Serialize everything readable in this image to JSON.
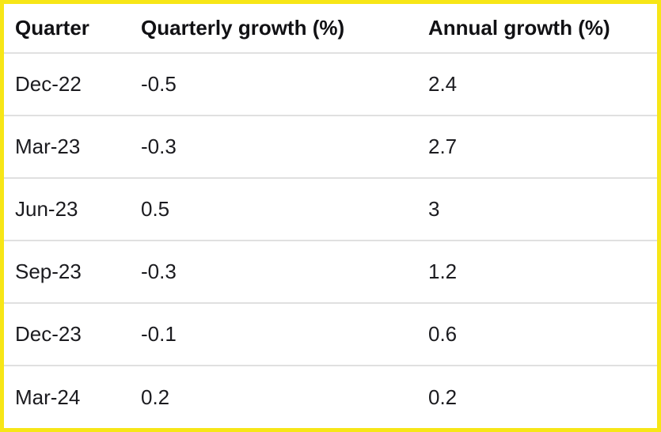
{
  "columns": [
    "Quarter",
    "Quarterly growth (%)",
    "Annual growth (%)"
  ],
  "rows": [
    {
      "quarter": "Dec-22",
      "quarterly_growth": "-0.5",
      "annual_growth": "2.4"
    },
    {
      "quarter": "Mar-23",
      "quarterly_growth": "-0.3",
      "annual_growth": "2.7"
    },
    {
      "quarter": "Jun-23",
      "quarterly_growth": "0.5",
      "annual_growth": "3"
    },
    {
      "quarter": "Sep-23",
      "quarterly_growth": "-0.3",
      "annual_growth": "1.2"
    },
    {
      "quarter": "Dec-23",
      "quarterly_growth": "-0.1",
      "annual_growth": "0.6"
    },
    {
      "quarter": "Mar-24",
      "quarterly_growth": "0.2",
      "annual_growth": "0.2"
    }
  ],
  "chart_data": {
    "type": "table",
    "title": "",
    "columns": [
      "Quarter",
      "Quarterly growth (%)",
      "Annual growth (%)"
    ],
    "rows": [
      [
        "Dec-22",
        -0.5,
        2.4
      ],
      [
        "Mar-23",
        -0.3,
        2.7
      ],
      [
        "Jun-23",
        0.5,
        3
      ],
      [
        "Sep-23",
        -0.3,
        1.2
      ],
      [
        "Dec-23",
        -0.1,
        0.6
      ],
      [
        "Mar-24",
        0.2,
        0.2
      ]
    ]
  },
  "colors": {
    "border_yellow": "#f7e617",
    "divider": "#e0e0e0",
    "text": "#1b1b1f",
    "background": "#ffffff"
  }
}
